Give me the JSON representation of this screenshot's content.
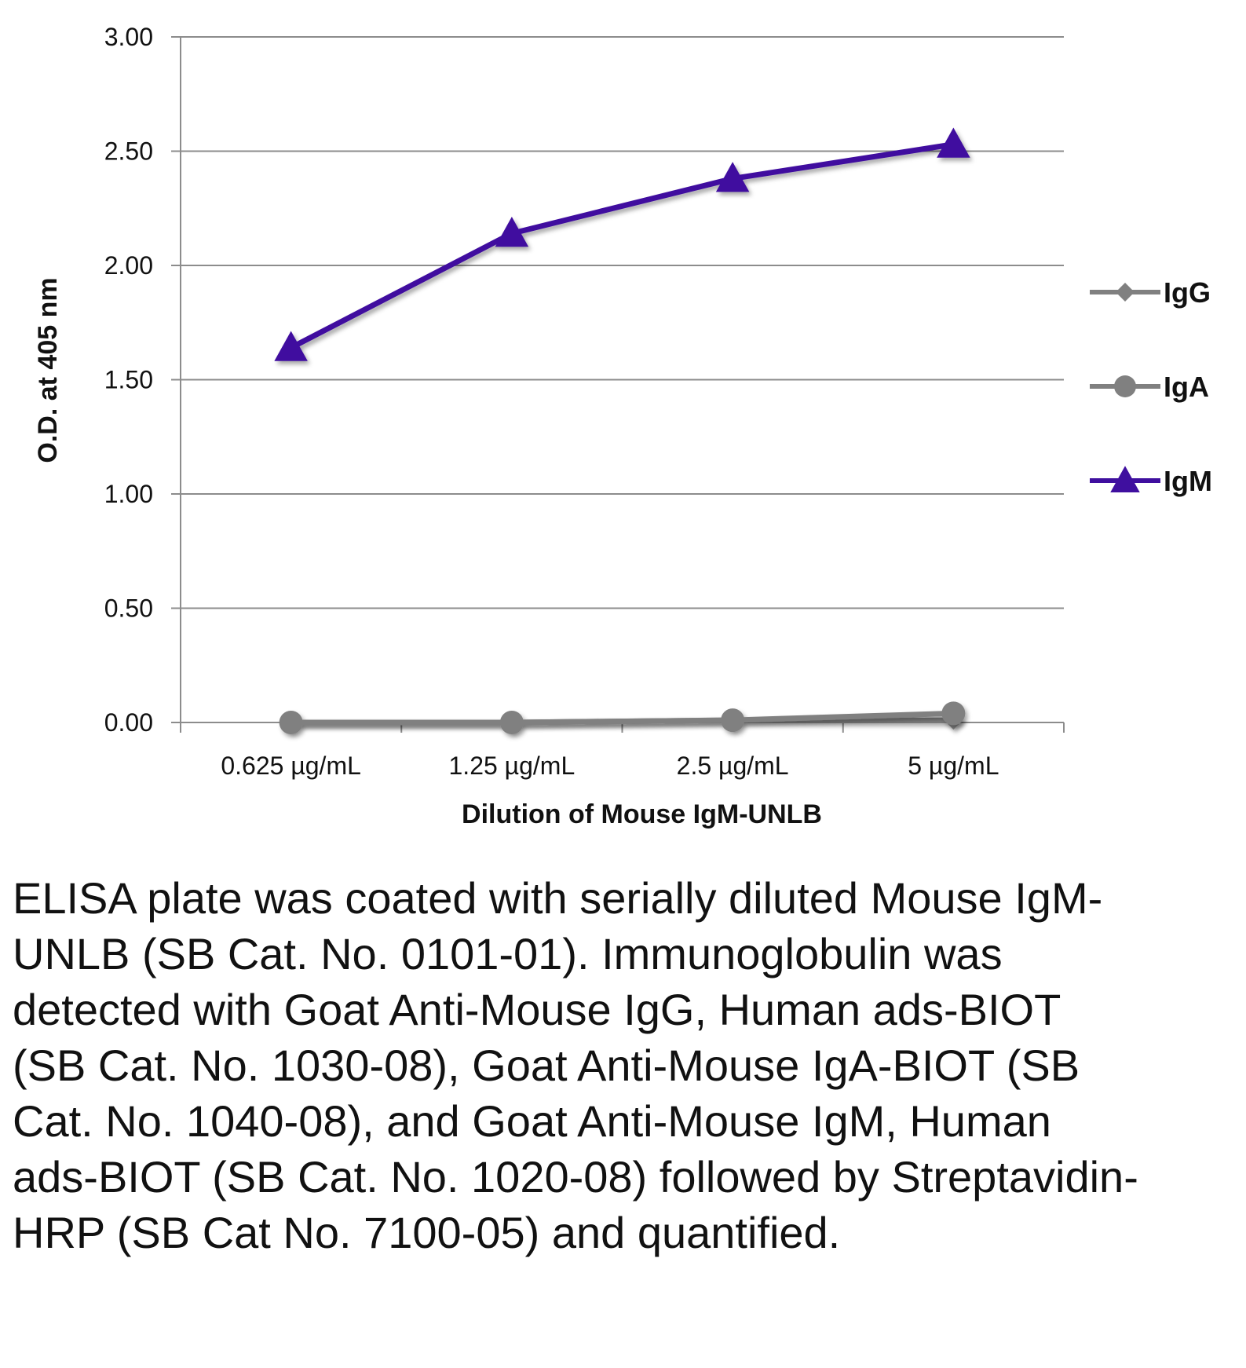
{
  "chart_data": {
    "type": "line",
    "title": "",
    "xlabel": "Dilution of Mouse IgM-UNLB",
    "ylabel": "O.D. at 405 nm",
    "categories": [
      "0.625 µg/mL",
      "1.25 µg/mL",
      "2.5 µg/mL",
      "5 µg/mL"
    ],
    "yticks": [
      "0.00",
      "0.50",
      "1.00",
      "1.50",
      "2.00",
      "2.50",
      "3.00"
    ],
    "ylim": [
      0,
      3
    ],
    "grid": true,
    "legend_position": "right",
    "series": [
      {
        "name": "IgG",
        "values": [
          0.0,
          0.0,
          0.01,
          0.01
        ],
        "color": "#808080",
        "marker": "diamond"
      },
      {
        "name": "IgA",
        "values": [
          0.0,
          0.0,
          0.01,
          0.04
        ],
        "color": "#808080",
        "marker": "circle"
      },
      {
        "name": "IgM",
        "values": [
          1.64,
          2.14,
          2.38,
          2.53
        ],
        "color": "#3f0f9f",
        "marker": "triangle"
      }
    ]
  },
  "caption": "ELISA plate was coated with serially diluted Mouse IgM-UNLB (SB Cat. No. 0101-01). Immunoglobulin was detected with Goat Anti-Mouse IgG, Human ads-BIOT (SB Cat. No. 1030-08), Goat Anti-Mouse IgA-BIOT (SB Cat. No. 1040-08), and Goat Anti-Mouse IgM, Human ads-BIOT (SB Cat. No. 1020-08) followed by Streptavidin-HRP (SB Cat No. 7100-05) and quantified."
}
